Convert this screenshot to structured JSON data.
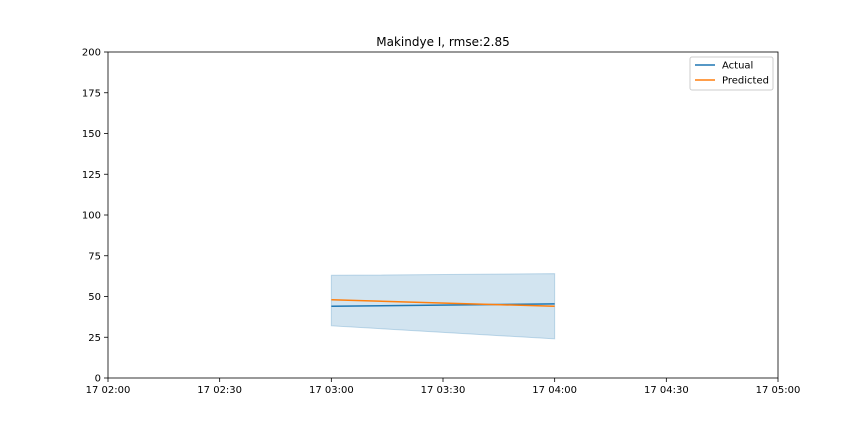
{
  "chart_data": {
    "type": "line",
    "title": "Makindye I, rmse:2.85",
    "xlabel": "",
    "ylabel": "",
    "x_ticks": [
      "17 02:00",
      "17 02:30",
      "17 03:00",
      "17 03:30",
      "17 04:00",
      "17 04:30",
      "17 05:00"
    ],
    "xlim": [
      "17 02:00",
      "17 05:00"
    ],
    "y_ticks": [
      0,
      25,
      50,
      75,
      100,
      125,
      150,
      175,
      200
    ],
    "ylim": [
      0,
      200
    ],
    "grid": false,
    "legend_position": "top-right",
    "x": [
      "17 03:00",
      "17 04:00"
    ],
    "series": [
      {
        "name": "Actual",
        "color": "#1f77b4",
        "values": [
          44,
          45.5
        ]
      },
      {
        "name": "Predicted",
        "color": "#ff7f0e",
        "values": [
          48,
          44
        ]
      }
    ],
    "band": {
      "color": "#1f77b4",
      "opacity": 0.2,
      "lower": [
        32,
        24
      ],
      "upper": [
        63,
        64
      ]
    }
  }
}
